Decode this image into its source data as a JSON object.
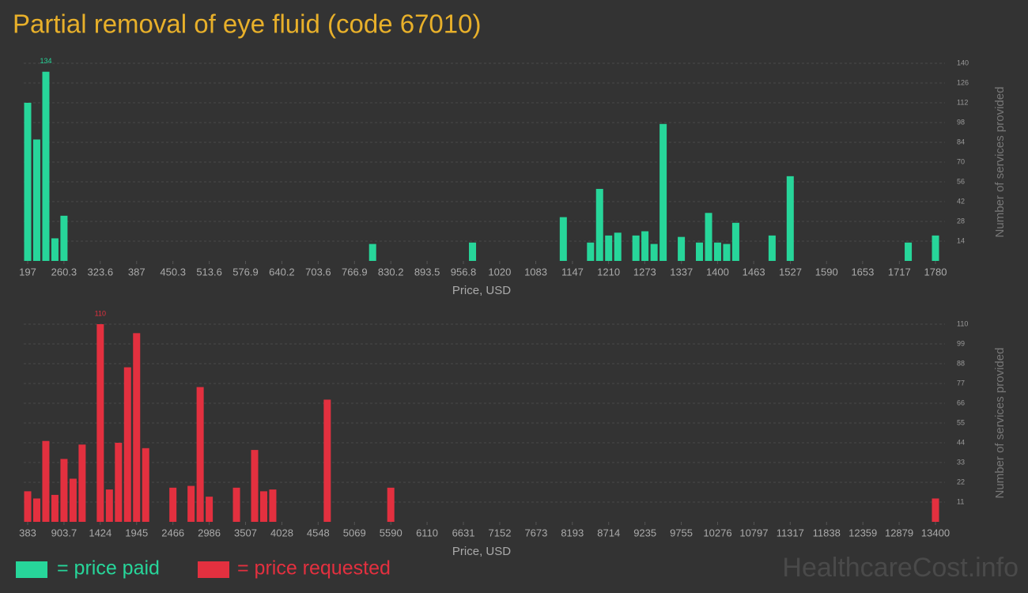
{
  "title": "Partial removal of eye fluid (code 67010)",
  "watermark": "HealthcareCost.info",
  "legend": [
    {
      "label": "= price paid",
      "color": "#27d69a"
    },
    {
      "label": "= price requested",
      "color": "#e3303f"
    }
  ],
  "chart_data": [
    {
      "type": "bar",
      "color": "#27d69a",
      "label_color": "#27d69a",
      "x": [
        197,
        212.8,
        228.7,
        244.5,
        260.3,
        798.5,
        972.7,
        1131,
        1178.5,
        1194.3,
        1210.1,
        1226,
        1257.6,
        1273.4,
        1289.3,
        1305.1,
        1336.8,
        1368.4,
        1384.3,
        1400.1,
        1415.9,
        1431.7,
        1495.1,
        1526.7,
        1732.5,
        1780
      ],
      "values": [
        112,
        86,
        134,
        16,
        32,
        12,
        13,
        31,
        13,
        51,
        18,
        20,
        18,
        21,
        12,
        97,
        17,
        13,
        34,
        13,
        12,
        27,
        18,
        60,
        13,
        18
      ],
      "xlim": [
        197,
        1780
      ],
      "xticks": [
        197,
        260.3,
        323.6,
        387,
        450.3,
        513.6,
        576.9,
        640.2,
        703.6,
        766.9,
        830.2,
        893.5,
        956.8,
        1020,
        1083,
        1147,
        1210,
        1273,
        1337,
        1400,
        1463,
        1527,
        1590,
        1653,
        1717,
        1780
      ],
      "ylim": [
        0,
        140
      ],
      "yticks": [
        14,
        28,
        42,
        56,
        70,
        84,
        98,
        112,
        126,
        140
      ],
      "xlabel": "Price, USD",
      "ylabel": "Number of services provided",
      "grid": true
    },
    {
      "type": "bar",
      "color": "#e3303f",
      "label_color": "#e3303f",
      "x": [
        383,
        513.2,
        643.3,
        773.5,
        903.7,
        1033.9,
        1164,
        1424.4,
        1554.5,
        1684.7,
        1814.9,
        1945,
        2075.2,
        2465.7,
        2726.1,
        2856.2,
        2986.4,
        3376.9,
        3637.3,
        3767.4,
        3897.6,
        4678.6,
        5589.8,
        13400
      ],
      "values": [
        17,
        13,
        45,
        15,
        35,
        24,
        43,
        110,
        18,
        44,
        86,
        105,
        41,
        19,
        20,
        75,
        14,
        19,
        40,
        17,
        18,
        68,
        19,
        13
      ],
      "xlim": [
        383,
        13400
      ],
      "xticks": [
        383,
        903.7,
        1424,
        1945,
        2466,
        2986,
        3507,
        4028,
        4548,
        5069,
        5590,
        6110,
        6631,
        7152,
        7673,
        8193,
        8714,
        9235,
        9755,
        10276,
        10797,
        11317,
        11838,
        12359,
        12879,
        13400
      ],
      "ylim": [
        0,
        110
      ],
      "yticks": [
        11,
        22,
        33,
        44,
        55,
        66,
        77,
        88,
        99,
        110
      ],
      "xlabel": "Price, USD",
      "ylabel": "Number of services provided",
      "grid": true
    }
  ]
}
